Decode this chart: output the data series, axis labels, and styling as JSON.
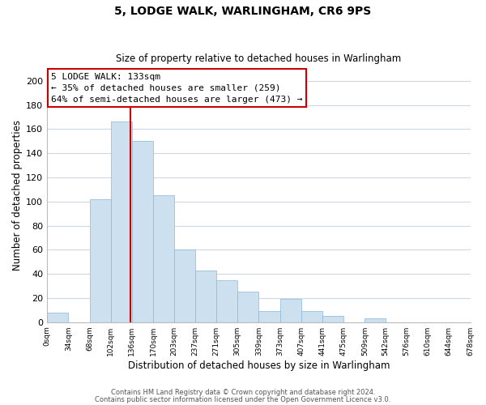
{
  "title": "5, LODGE WALK, WARLINGHAM, CR6 9PS",
  "subtitle": "Size of property relative to detached houses in Warlingham",
  "xlabel": "Distribution of detached houses by size in Warlingham",
  "ylabel": "Number of detached properties",
  "bar_left_edges": [
    0,
    34,
    68,
    102,
    136,
    170,
    203,
    237,
    271,
    305,
    339,
    373,
    407,
    441,
    475,
    509,
    542,
    576,
    610,
    644
  ],
  "bar_heights": [
    8,
    0,
    102,
    166,
    150,
    105,
    60,
    43,
    35,
    25,
    9,
    19,
    9,
    5,
    0,
    3,
    0,
    0,
    0,
    0
  ],
  "bar_widths": [
    34,
    34,
    34,
    34,
    34,
    33,
    34,
    34,
    34,
    34,
    34,
    34,
    34,
    34,
    34,
    33,
    34,
    34,
    34,
    34
  ],
  "bar_color": "#cce0f0",
  "bar_edge_color": "#8ab8d8",
  "property_line_x": 133,
  "property_line_color": "#cc0000",
  "ylim": [
    0,
    210
  ],
  "yticks": [
    0,
    20,
    40,
    60,
    80,
    100,
    120,
    140,
    160,
    180,
    200
  ],
  "xtick_labels": [
    "0sqm",
    "34sqm",
    "68sqm",
    "102sqm",
    "136sqm",
    "170sqm",
    "203sqm",
    "237sqm",
    "271sqm",
    "305sqm",
    "339sqm",
    "373sqm",
    "407sqm",
    "441sqm",
    "475sqm",
    "509sqm",
    "542sqm",
    "576sqm",
    "610sqm",
    "644sqm",
    "678sqm"
  ],
  "annotation_title": "5 LODGE WALK: 133sqm",
  "annotation_line1": "← 35% of detached houses are smaller (259)",
  "annotation_line2": "64% of semi-detached houses are larger (473) →",
  "annotation_box_color": "#ffffff",
  "annotation_box_edge": "#cc0000",
  "footer1": "Contains HM Land Registry data © Crown copyright and database right 2024.",
  "footer2": "Contains public sector information licensed under the Open Government Licence v3.0.",
  "bg_color": "#ffffff",
  "grid_color": "#ccd9e8"
}
